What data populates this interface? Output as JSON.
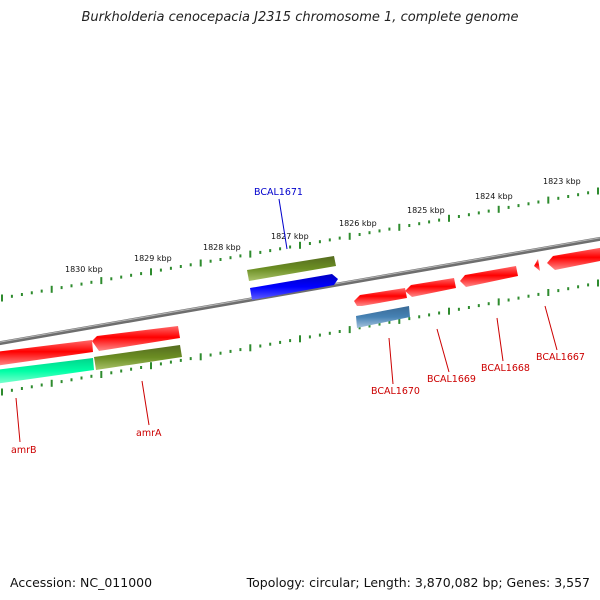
{
  "title": "Burkholderia cenocepacia J2315 chromosome 1, complete genome",
  "footer": {
    "accession": "Accession: NC_011000",
    "summary": "Topology: circular; Length: 3,870,082 bp; Genes: 3,557"
  },
  "colors": {
    "backbone": "#7a7a7a",
    "tick": "#2e8b2e",
    "forward_gene": "#ff1111",
    "reverse_gene": "#ff1111",
    "rna_gene": "#0000ee",
    "olive": "#6b8e23",
    "teal": "#00ff9f",
    "steel": "#4682b4",
    "highlight_label": "#0000cc",
    "label": "#cc0000"
  },
  "tick_labels": [
    "1823 kbp",
    "1824 kbp",
    "1825 kbp",
    "1826 kbp",
    "1827 kbp",
    "1828 kbp",
    "1829 kbp",
    "1830 kbp"
  ],
  "genes": [
    {
      "name": "BCAL1671",
      "type": "rna_gene",
      "strand": "+",
      "highlight": true
    },
    {
      "name": "BCAL1670",
      "type": "reverse_gene",
      "strand": "-"
    },
    {
      "name": "BCAL1669",
      "type": "reverse_gene",
      "strand": "-"
    },
    {
      "name": "BCAL1668",
      "type": "reverse_gene",
      "strand": "-"
    },
    {
      "name": "BCAL1667",
      "type": "reverse_gene",
      "strand": "-"
    },
    {
      "name": "amrA",
      "type": "reverse_gene",
      "strand": "-"
    },
    {
      "name": "amrB",
      "type": "reverse_gene",
      "strand": "-"
    }
  ]
}
